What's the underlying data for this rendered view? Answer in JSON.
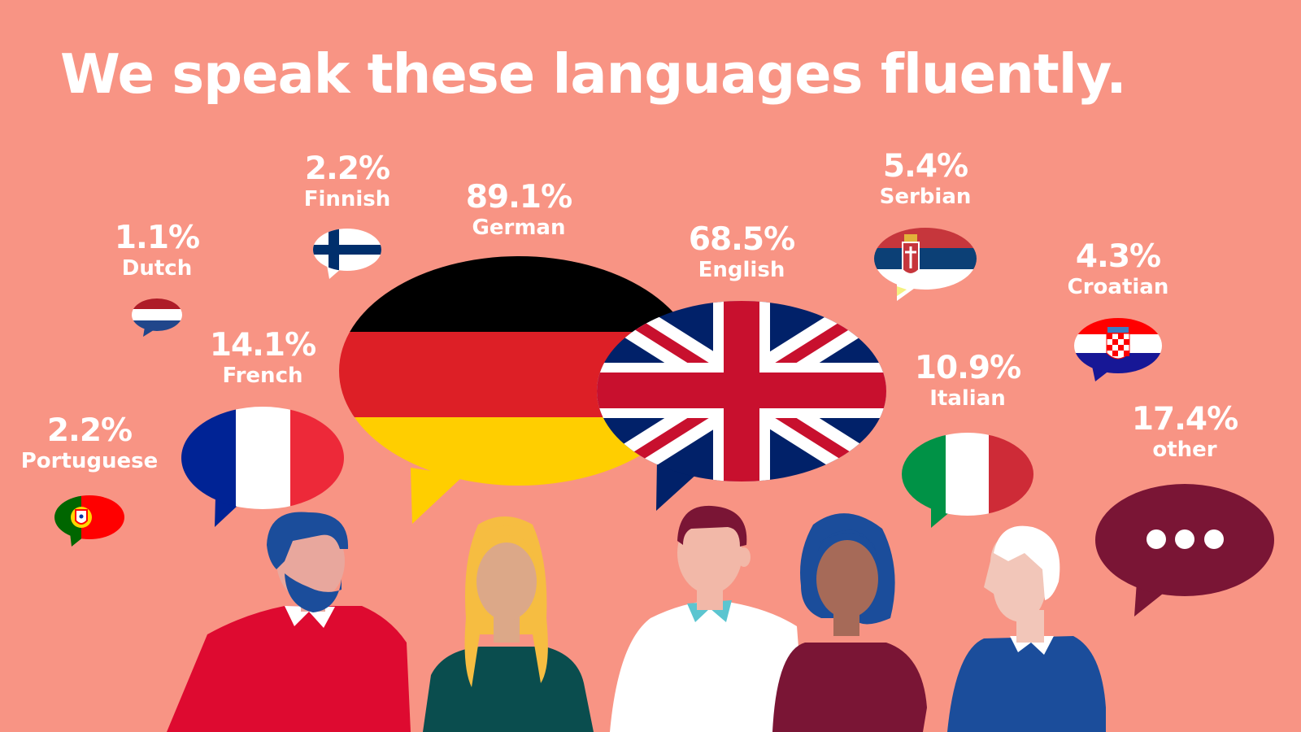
{
  "title": "We speak these languages fluently.",
  "languages": [
    {
      "name": "Dutch",
      "percent": "1.1%"
    },
    {
      "name": "Finnish",
      "percent": "2.2%"
    },
    {
      "name": "German",
      "percent": "89.1%"
    },
    {
      "name": "English",
      "percent": "68.5%"
    },
    {
      "name": "Serbian",
      "percent": "5.4%"
    },
    {
      "name": "Croatian",
      "percent": "4.3%"
    },
    {
      "name": "French",
      "percent": "14.1%"
    },
    {
      "name": "Italian",
      "percent": "10.9%"
    },
    {
      "name": "Portuguese",
      "percent": "2.2%"
    },
    {
      "name": "other",
      "percent": "17.4%"
    }
  ],
  "colors": {
    "background": "#F89484",
    "text": "#FFFFFF",
    "other_bubble": "#7A1535"
  }
}
